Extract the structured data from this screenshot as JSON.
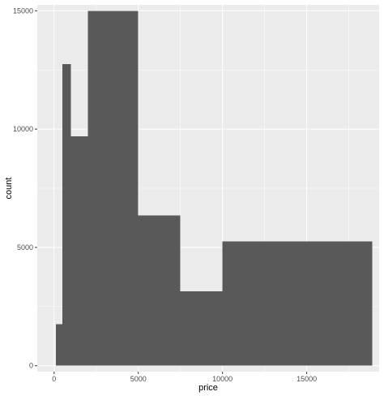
{
  "colors": {
    "panel_background": "#ebebeb",
    "grid_major": "#ffffff",
    "bar_fill": "#595959",
    "tick_text": "#4d4d4d",
    "axis_title": "#000000"
  },
  "chart_data": {
    "type": "bar",
    "subtype": "histogram",
    "xlabel": "price",
    "ylabel": "count",
    "xlim": [
      -1000,
      19300
    ],
    "ylim": [
      -250,
      15250
    ],
    "x_ticks": [
      0,
      5000,
      10000,
      15000
    ],
    "y_ticks": [
      0,
      5000,
      10000,
      15000
    ],
    "x_tick_labels": [
      "0",
      "5000",
      "10000",
      "15000"
    ],
    "y_tick_labels": [
      "0",
      "5000",
      "10000",
      "15000"
    ],
    "grid": true,
    "bins": [
      {
        "x_start": 100,
        "x_end": 500,
        "count": 1750
      },
      {
        "x_start": 500,
        "x_end": 1000,
        "count": 12750
      },
      {
        "x_start": 1000,
        "x_end": 2000,
        "count": 9700
      },
      {
        "x_start": 2000,
        "x_end": 5000,
        "count": 15000
      },
      {
        "x_start": 5000,
        "x_end": 7500,
        "count": 6350
      },
      {
        "x_start": 7500,
        "x_end": 10000,
        "count": 3150
      },
      {
        "x_start": 10000,
        "x_end": 18900,
        "count": 5250
      }
    ]
  }
}
